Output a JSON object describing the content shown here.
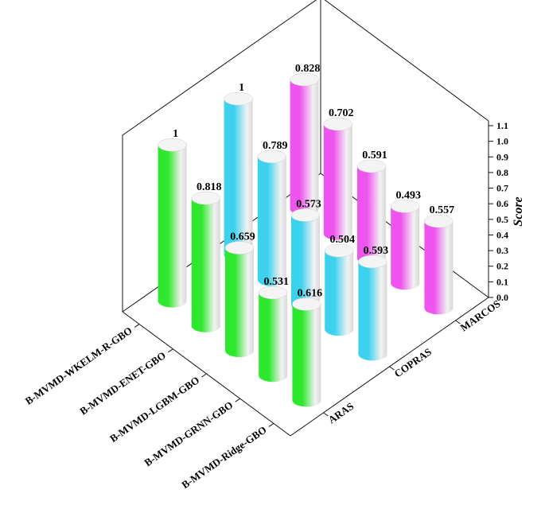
{
  "chart_data": {
    "type": "bar",
    "style": "3d-cylinder",
    "title": "",
    "zlabel": "Score",
    "zlim": [
      0,
      1.1
    ],
    "zticks": [
      "0.0",
      "0.1",
      "0.2",
      "0.3",
      "0.4",
      "0.5",
      "0.6",
      "0.7",
      "0.8",
      "0.9",
      "1.0",
      "1.1"
    ],
    "categories": [
      "B-MVMD-WKELM-R-GBO",
      "B-MVMD-ENET-GBO",
      "B-MVMD-LGBM-GBO",
      "B-MVMD-GRNN-GBO",
      "B-MVMD-Ridge-GBO"
    ],
    "series": [
      {
        "name": "ARAS",
        "color": "#2ee82e",
        "values": [
          1,
          0.818,
          0.659,
          0.531,
          0.616
        ],
        "labels": [
          "1",
          "0.818",
          "0.659",
          "0.531",
          "0.616"
        ]
      },
      {
        "name": "COPRAS",
        "color": "#3cd2ee",
        "values": [
          1,
          0.789,
          0.573,
          0.504,
          0.593
        ],
        "labels": [
          "1",
          "0.789",
          "0.573",
          "0.504",
          "0.593"
        ]
      },
      {
        "name": "MARCOS",
        "color": "#ee55ee",
        "values": [
          0.828,
          0.702,
          0.591,
          0.493,
          0.557
        ],
        "labels": [
          "0.828",
          "0.702",
          "0.591",
          "0.493",
          "0.557"
        ]
      }
    ],
    "grid": false
  }
}
